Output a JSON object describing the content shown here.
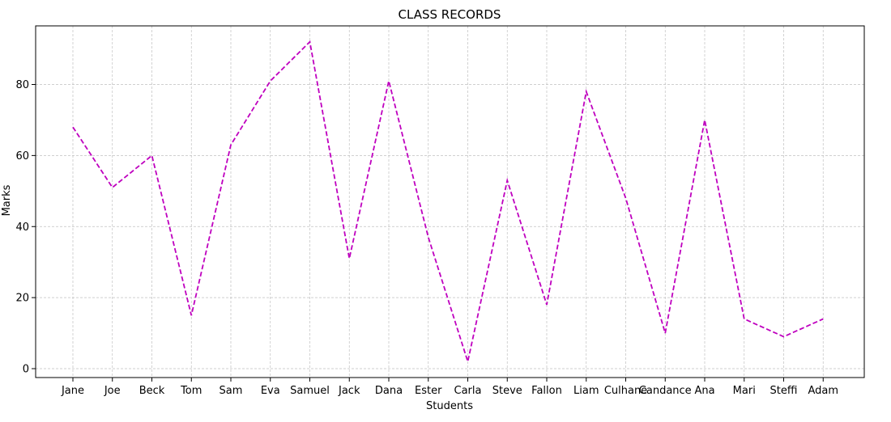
{
  "chart_data": {
    "type": "line",
    "title": "CLASS RECORDS",
    "xlabel": "Students",
    "ylabel": "Marks",
    "categories": [
      "Jane",
      "Joe",
      "Beck",
      "Tom",
      "Sam",
      "Eva",
      "Samuel",
      "Jack",
      "Dana",
      "Ester",
      "Carla",
      "Steve",
      "Fallon",
      "Liam",
      "Culhane",
      "Candance",
      "Ana",
      "Mari",
      "Steffi",
      "Adam"
    ],
    "series": [
      {
        "values": [
          68,
          51,
          60,
          15,
          63,
          81,
          92,
          31,
          81,
          37,
          2,
          53,
          18,
          78,
          48,
          10,
          70,
          14,
          9,
          14
        ]
      }
    ],
    "ylim": [
      -2.5,
      96.5
    ],
    "yticks": [
      0,
      20,
      40,
      60,
      80
    ],
    "grid": true,
    "line_style": "dashed",
    "line_color": "#bf00bf",
    "grid_color": "#c0c0c0"
  }
}
